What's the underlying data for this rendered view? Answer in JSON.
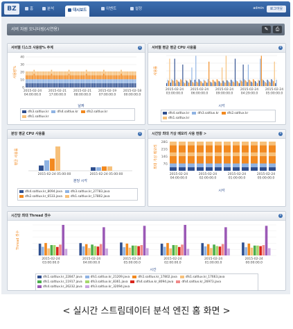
{
  "nav": {
    "logo": "BZ",
    "items": [
      {
        "label": "홈",
        "active": false
      },
      {
        "label": "분석",
        "active": false
      },
      {
        "label": "대시보드",
        "active": true
      },
      {
        "label": "이벤트",
        "active": false
      },
      {
        "label": "설정",
        "active": false
      }
    ],
    "user": "admin",
    "logout_label": "로그아웃"
  },
  "page_title": "서버 자원 모니터링(시연용)",
  "caption": "< 실시간 스트림데이터 분석 엔진 홈 화면 >",
  "colors": {
    "navy": "#2f4f8f",
    "sky": "#8fb3e3",
    "orange": "#f2891f",
    "peach": "#f6c07a",
    "green": "#4cae4c",
    "lime": "#a5d86b",
    "red": "#d9261c",
    "pink": "#f08a8a",
    "purple": "#9b59b6",
    "lavender": "#c9a5e0",
    "brown": "#8a5a3c",
    "gray": "#999999"
  },
  "panels": [
    {
      "title": "서버별 디스크 사용량% 추계",
      "chart_data": {
        "type": "bar",
        "ylabel": "사용량%",
        "xlabel": "날짜",
        "ylim": [
          0,
          40
        ],
        "yticks": [
          "40",
          "30",
          "20",
          "10",
          "0"
        ],
        "xticks": [
          "2015-02-24 04:00:00.0",
          "2015-02-21 17:00:00.0",
          "2015-02-21 08:00:00.0",
          "2015-02-19 07:00:00.0",
          "2015-02-18 00:00:00.0"
        ],
        "series": [
          {
            "name": "dfs3.saltlux.kr",
            "color": "#2f4f8f",
            "level": 22
          },
          {
            "name": "dfs4.saltlux.kr",
            "color": "#8fb3e3",
            "level": 21
          },
          {
            "name": "dfs2.saltlux.kr",
            "color": "#f2891f",
            "level": 21
          },
          {
            "name": "dfs1.saltlux.kr",
            "color": "#f6c07a",
            "level": 20
          }
        ]
      }
    },
    {
      "title": "서버별 평균 평균 CPU 사용률",
      "chart_data": {
        "type": "bar",
        "ylabel": "사용률",
        "xlabel": "시각",
        "ylim": [
          0,
          100
        ],
        "xticks": [
          "2015-02-24 03:00:00.0",
          "2015-02-24 06:00:00.0",
          "2015-02-24 09:00:00.0",
          "2015-02-24 04:29:00.0",
          "2015-02-24 05:00:00.0"
        ],
        "series": [
          {
            "name": "dfs4.saltlux.kr",
            "color": "#2f4f8f"
          },
          {
            "name": "dfs3.saltlux.kr",
            "color": "#8fb3e3"
          },
          {
            "name": "dfs2.saltlux.kr",
            "color": "#f2891f"
          },
          {
            "name": "dfs1.saltlux.kr",
            "color": "#f6c07a"
          }
        ]
      }
    },
    {
      "title": "분당 평균 CPU 사용률",
      "chart_data": {
        "type": "bar",
        "ylabel": "평균 사용률",
        "xlabel": "분당 시각",
        "categories": [
          "2015-02-24 05:00:00",
          "2015-02-24 05:00:00"
        ],
        "series": [
          {
            "name": "dfs4.saltlux.kr_8094.java",
            "color": "#2f4f8f",
            "values": [
              6,
              4
            ]
          },
          {
            "name": "dfs3.saltlux.kr_27783.java",
            "color": "#8fb3e3",
            "values": [
              12,
              4
            ]
          },
          {
            "name": "dfs2.saltlux.kr_6533.java",
            "color": "#f2891f",
            "values": [
              14,
              5
            ]
          },
          {
            "name": "dfs1.saltlux.kr_17802.java",
            "color": "#f6c07a",
            "values": [
              28,
              5
            ]
          }
        ]
      }
    },
    {
      "title": "시간당 최대 가상 메모리 사용 현황 >",
      "chart_data": {
        "type": "bar",
        "ylabel": "최대 가상 메모리",
        "xlabel": "시각",
        "yticks": [
          "28G",
          "21G",
          "14G",
          "7G"
        ],
        "categories": [
          "2015-02-24 04:00:00.0",
          "2015-02-24 02:00:00.0",
          "2015-02-24 01:00:00.0",
          "2015-02-24 05:00:00.0"
        ],
        "stack": [
          {
            "color": "#2f4f8f",
            "value": 3
          },
          {
            "color": "#8fb3e3",
            "value": 3
          },
          {
            "color": "#f2891f",
            "value": 6
          },
          {
            "color": "#f6c07a",
            "value": 3
          },
          {
            "color": "#f2891f",
            "value": 6
          },
          {
            "color": "#f6c07a",
            "value": 3
          }
        ]
      }
    },
    {
      "title": "시간당 최대 Thread 갯수",
      "chart_data": {
        "type": "bar",
        "ylabel": "Thread 갯수",
        "xlabel": "시간",
        "yticks": [
          "250",
          "200",
          "150",
          "100",
          "50",
          "0"
        ],
        "categories": [
          "2015-02-24 03:00:00.0",
          "2015-02-24 04:00:00.0",
          "2015-02-24 05:00:00.0",
          "2015-02-24 02:00:00.0",
          "2015-02-24 01:00:00.0",
          "2015-02-24 00:00:00.0"
        ],
        "series": [
          {
            "name": "dfs1.saltlux.kr_22847.java",
            "color": "#2f4f8f"
          },
          {
            "name": "dfs1.saltlux.kr_21209.java",
            "color": "#8fb3e3"
          },
          {
            "name": "dfs1.saltlux.kr_17802.java",
            "color": "#f2891f"
          },
          {
            "name": "dfs1.saltlux.kr_17663.java",
            "color": "#f6c07a"
          },
          {
            "name": "dfs1.saltlux.kr_11917.java",
            "color": "#4cae4c"
          },
          {
            "name": "dfs3.saltlux.kr_8361.java",
            "color": "#a5d86b"
          },
          {
            "name": "dfs4.saltlux.kr_8094.java",
            "color": "#d9261c"
          },
          {
            "name": "dfs4.saltlux.kr_26973.java",
            "color": "#f08a8a"
          },
          {
            "name": "dfs4.saltlux.kr_26232.java",
            "color": "#9b59b6"
          },
          {
            "name": "dfs3.saltlux.kr_32094.java",
            "color": "#c9a5e0"
          }
        ],
        "group_values": [
          50,
          35,
          48,
          30,
          42,
          40,
          36,
          44,
          120,
          28
        ]
      }
    }
  ]
}
